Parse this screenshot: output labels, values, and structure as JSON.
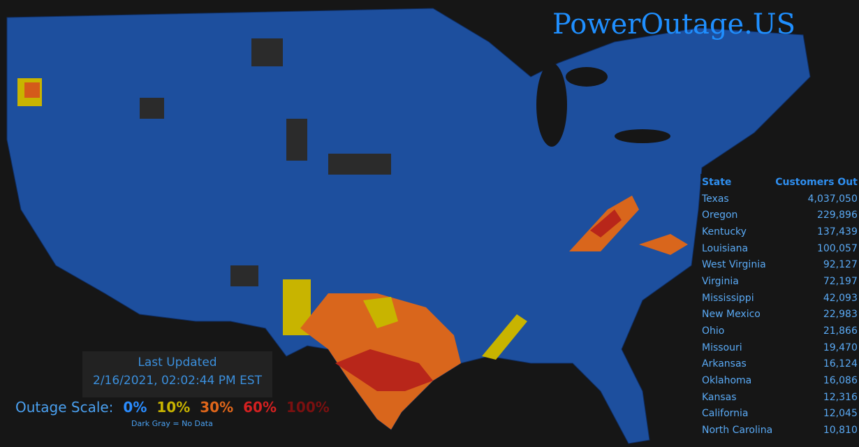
{
  "header": {
    "title": "PowerOutage.US"
  },
  "last_updated": {
    "label": "Last Updated",
    "timestamp": "2/16/2021, 02:02:44 PM EST"
  },
  "scale": {
    "label": "Outage Scale:",
    "levels": [
      "0%",
      "10%",
      "30%",
      "60%",
      "100%"
    ],
    "note": "Dark Gray = No Data"
  },
  "table": {
    "columns": [
      "State",
      "Customers Out"
    ],
    "rows": [
      [
        "Texas",
        "4,037,050"
      ],
      [
        "Oregon",
        "229,896"
      ],
      [
        "Kentucky",
        "137,439"
      ],
      [
        "Louisiana",
        "100,057"
      ],
      [
        "West Virginia",
        "92,127"
      ],
      [
        "Virginia",
        "72,197"
      ],
      [
        "Mississippi",
        "42,093"
      ],
      [
        "New Mexico",
        "22,983"
      ],
      [
        "Ohio",
        "21,866"
      ],
      [
        "Missouri",
        "19,470"
      ],
      [
        "Arkansas",
        "16,124"
      ],
      [
        "Oklahoma",
        "16,086"
      ],
      [
        "Kansas",
        "12,316"
      ],
      [
        "California",
        "12,045"
      ],
      [
        "North Carolina",
        "10,810"
      ]
    ]
  }
}
